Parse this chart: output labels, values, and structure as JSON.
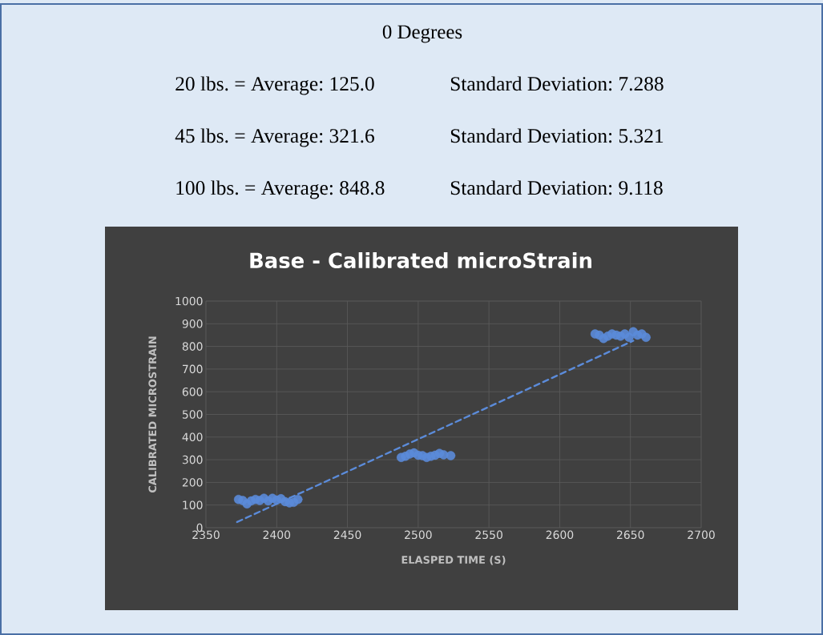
{
  "chart_data": {
    "type": "scatter",
    "title": "Base - Calibrated microStrain",
    "xlabel": "ELASPED TIME (S)",
    "ylabel": "CALIBRATED MICROSTRAIN",
    "annotations": [
      "0 Degrees",
      "20 lbs. = Average: 125.0",
      "Standard Deviation: 7.288",
      "45 lbs. = Average: 321.6",
      "Standard Deviation: 5.321",
      "100 lbs. = Average: 848.8",
      "Standard Deviation: 9.118"
    ],
    "xlim": [
      2350,
      2700
    ],
    "ylim": [
      0,
      1000
    ],
    "xticks": [
      2350,
      2400,
      2450,
      2500,
      2550,
      2600,
      2650,
      2700
    ],
    "yticks": [
      0,
      100,
      200,
      300,
      400,
      500,
      600,
      700,
      800,
      900,
      1000
    ],
    "grid": true,
    "marker": "circle",
    "series": [
      {
        "type": "scatter",
        "color": "#5b8bd9",
        "x": [
          2373,
          2376,
          2379,
          2382,
          2385,
          2388,
          2391,
          2394,
          2397,
          2400,
          2403,
          2406,
          2409,
          2412,
          2415,
          2488,
          2491,
          2494,
          2497,
          2500,
          2503,
          2506,
          2509,
          2512,
          2515,
          2518,
          2521,
          2523,
          2625,
          2628,
          2631,
          2634,
          2637,
          2640,
          2643,
          2646,
          2649,
          2652,
          2655,
          2658,
          2661
        ],
        "values": [
          125,
          120,
          105,
          118,
          125,
          120,
          130,
          118,
          130,
          122,
          128,
          115,
          110,
          112,
          125,
          310,
          315,
          325,
          330,
          320,
          318,
          310,
          315,
          320,
          328,
          322,
          null,
          318,
          855,
          850,
          835,
          845,
          855,
          850,
          845,
          855,
          840,
          865,
          850,
          855,
          840
        ]
      },
      {
        "type": "line",
        "color": "#5b8bd9",
        "line_style": "dashed",
        "marker": "none",
        "x": [
          2372,
          2652
        ],
        "values": [
          25,
          825
        ]
      }
    ]
  }
}
